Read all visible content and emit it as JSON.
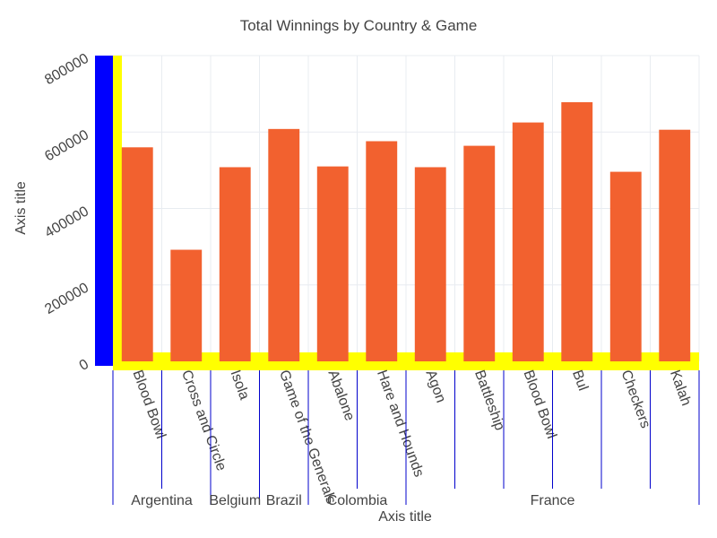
{
  "colors": {
    "bar": "#f2612f",
    "plot_bg": "#ffffff",
    "grid": "#e8ecf1",
    "y_axis_band": "#0000ff",
    "x_axis_band": "#ffff00",
    "divider": "#0000cc",
    "text": "#444444"
  },
  "chart_data": {
    "type": "bar",
    "title": "Total Winnings by Country & Game",
    "xlabel": "Axis title",
    "ylabel": "Axis title",
    "ylim": [
      0,
      800000
    ],
    "yticks": [
      "0",
      "200000",
      "400000",
      "600000",
      "800000"
    ],
    "grid": true,
    "categories": [
      {
        "country": "Argentina",
        "game": "Blood Bowl"
      },
      {
        "country": "Argentina",
        "game": "Cross and Circle"
      },
      {
        "country": "Belgium",
        "game": "Isola"
      },
      {
        "country": "Brazil",
        "game": "Game of the Generals"
      },
      {
        "country": "Colombia",
        "game": "Abalone"
      },
      {
        "country": "Colombia",
        "game": "Hare and Hounds"
      },
      {
        "country": "France",
        "game": "Agon"
      },
      {
        "country": "France",
        "game": "Battleship"
      },
      {
        "country": "France",
        "game": "Blood Bowl"
      },
      {
        "country": "France",
        "game": "Bul"
      },
      {
        "country": "France",
        "game": "Checkers"
      },
      {
        "country": "France",
        "game": "Kalah"
      }
    ],
    "groups": [
      "Argentina",
      "Belgium",
      "Brazil",
      "Colombia",
      "France"
    ],
    "values": [
      560000,
      292000,
      508000,
      608000,
      510000,
      576000,
      508000,
      564000,
      625000,
      678000,
      496000,
      606000
    ]
  }
}
